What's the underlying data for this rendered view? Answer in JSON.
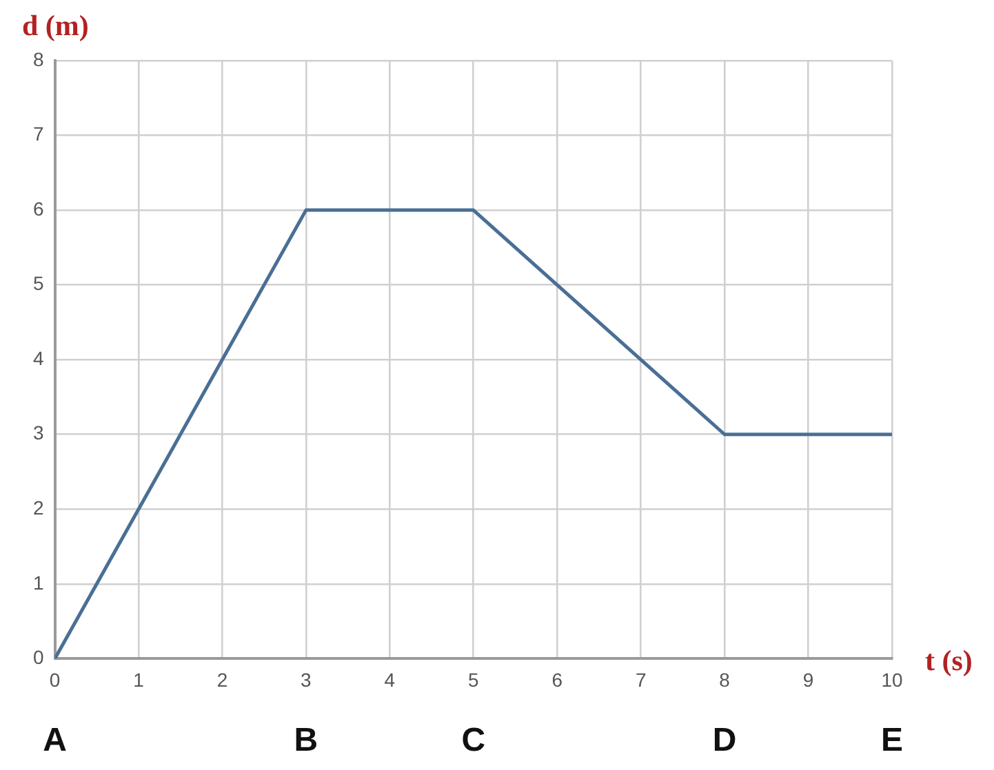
{
  "chart_data": {
    "type": "line",
    "xlabel": "t (s)",
    "ylabel": "d (m)",
    "x": [
      0,
      3,
      5,
      8,
      10
    ],
    "series": [
      {
        "color": "#4a6f96",
        "values": [
          0,
          6,
          6,
          3,
          3
        ]
      }
    ],
    "xlim": [
      0,
      10
    ],
    "xticks": [
      0,
      1,
      2,
      3,
      4,
      5,
      6,
      7,
      8,
      9,
      10
    ],
    "ylim": [
      0,
      8
    ],
    "yticks": [
      0,
      1,
      2,
      3,
      4,
      5,
      6,
      7,
      8
    ],
    "grid": true,
    "legend": false,
    "marker": "none",
    "line_style": "solid",
    "annotations": [
      "A",
      "B",
      "C",
      "D",
      "E"
    ]
  }
}
